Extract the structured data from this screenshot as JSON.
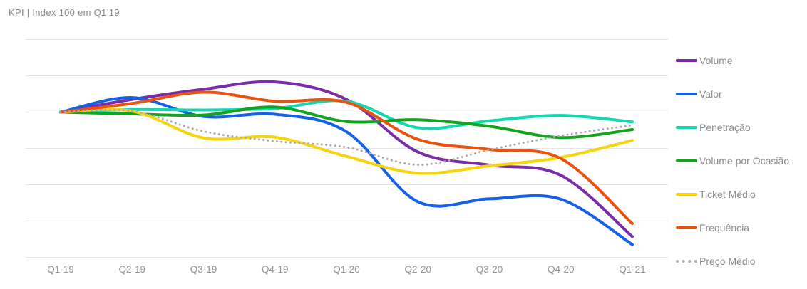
{
  "colors": {
    "background": "#ffffff",
    "grid": "#e5e5e5",
    "title_text": "#8a8a8a",
    "axis_text": "#949494",
    "legend_text": "#8c8c8c"
  },
  "chart_data": {
    "type": "line",
    "title": "KPI | Index 100 em Q1’19",
    "xlabel": "",
    "ylabel": "",
    "baseline_value": 100,
    "ylim": [
      60,
      120
    ],
    "grid_step": 10,
    "grid": "horizontal",
    "legend_position": "right",
    "categories": [
      "Q1-19",
      "Q2-19",
      "Q3-19",
      "Q4-19",
      "Q1-20",
      "Q2-20",
      "Q3-20",
      "Q4-20",
      "Q1-21"
    ],
    "series": [
      {
        "name": "Volume",
        "color": "#7b2ca8",
        "style": "solid",
        "values": [
          100,
          103.5,
          106.3,
          108.3,
          103.5,
          89.0,
          85.4,
          82.6,
          65.7
        ]
      },
      {
        "name": "Valor",
        "color": "#1461e8",
        "style": "solid",
        "values": [
          100,
          104.0,
          98.8,
          99.4,
          94.6,
          75.3,
          76.1,
          76.0,
          63.5
        ]
      },
      {
        "name": "Penetração",
        "color": "#13d7b0",
        "style": "solid",
        "values": [
          100,
          100.7,
          100.6,
          101.0,
          103.0,
          95.7,
          97.6,
          99.1,
          97.3
        ]
      },
      {
        "name": "Volume por Ocasião",
        "color": "#14a51e",
        "style": "solid",
        "values": [
          100,
          99.5,
          99.2,
          101.4,
          97.4,
          97.9,
          96.1,
          93.0,
          95.2
        ]
      },
      {
        "name": "Ticket Médio",
        "color": "#f8d40e",
        "style": "solid",
        "values": [
          100,
          100.3,
          92.9,
          93.1,
          87.8,
          83.2,
          85.2,
          87.5,
          92.2
        ]
      },
      {
        "name": "Frequência",
        "color": "#ea520f",
        "style": "solid",
        "values": [
          100,
          102.4,
          105.5,
          103.0,
          102.7,
          92.5,
          89.7,
          87.2,
          69.3
        ]
      },
      {
        "name": "Preço Médio",
        "color": "#ababab",
        "style": "dotted",
        "values": [
          100,
          100.3,
          94.7,
          92.0,
          90.3,
          85.5,
          89.6,
          93.5,
          96.4
        ]
      }
    ]
  }
}
